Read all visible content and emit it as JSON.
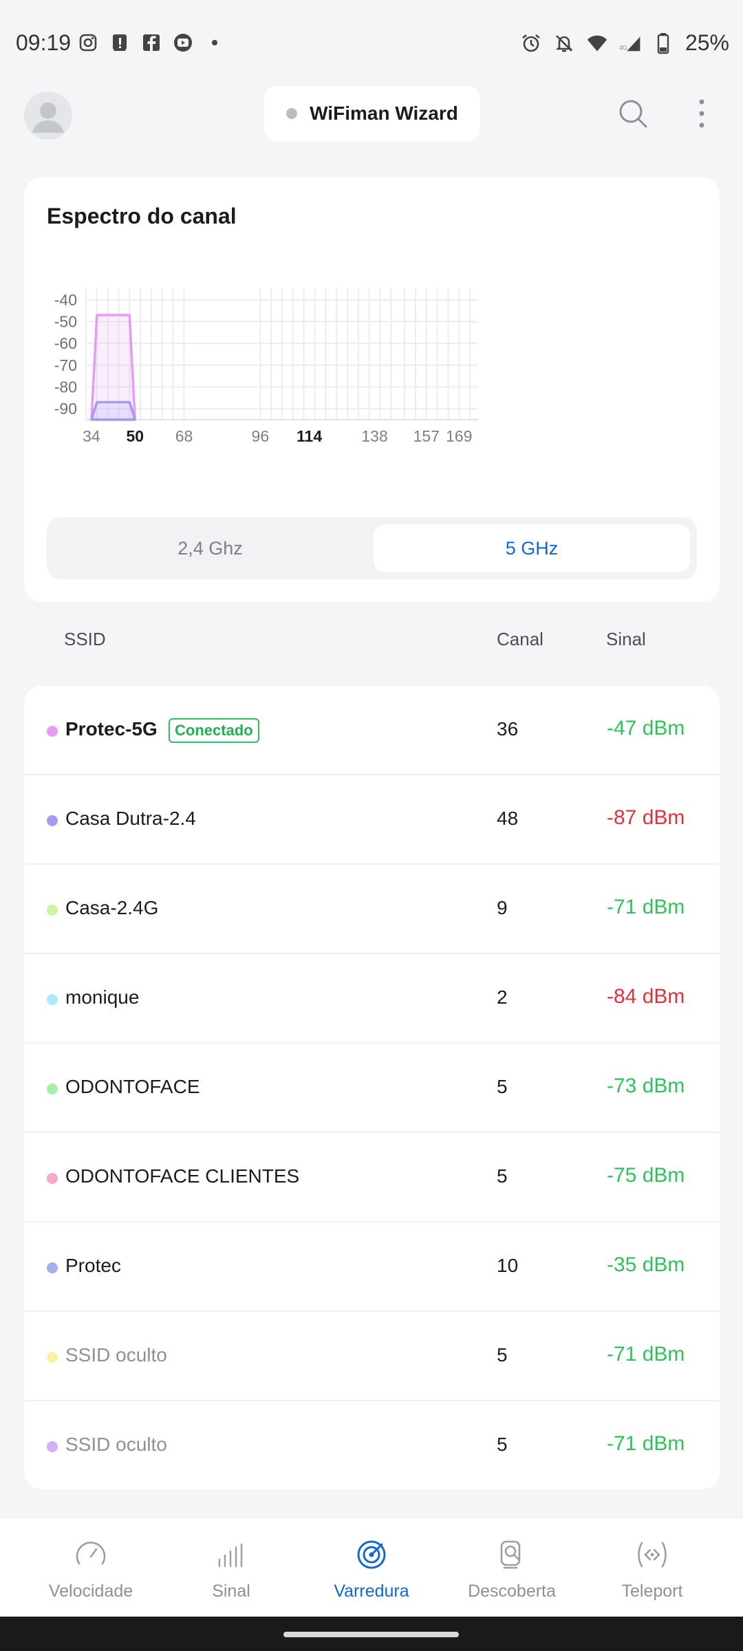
{
  "status_bar": {
    "time": "09:19",
    "battery": "25%",
    "left_icons": [
      "instagram-icon",
      "notification-icon",
      "facebook-icon",
      "youtube-icon",
      "dot-icon"
    ],
    "right_icons": [
      "alarm-icon",
      "bell-off-icon",
      "wifi-icon",
      "signal-4g-icon",
      "battery-icon"
    ]
  },
  "header": {
    "title": "WiFiman Wizard"
  },
  "spectrum": {
    "title": "Espectro do canal",
    "bands": {
      "left": "2,4 Ghz",
      "right": "5 GHz",
      "selected": "5 GHz"
    }
  },
  "chart_data": {
    "type": "area",
    "title": "Espectro do canal",
    "xlabel": "",
    "ylabel": "",
    "y_ticks": [
      "-40",
      "-50",
      "-60",
      "-70",
      "-80",
      "-90"
    ],
    "ylim": [
      -95,
      -35
    ],
    "x_ticks": [
      {
        "label": "34",
        "value": 34,
        "bold": false
      },
      {
        "label": "50",
        "value": 50,
        "bold": true
      },
      {
        "label": "68",
        "value": 68,
        "bold": false
      },
      {
        "label": "96",
        "value": 96,
        "bold": false
      },
      {
        "label": "114",
        "value": 114,
        "bold": true
      },
      {
        "label": "138",
        "value": 138,
        "bold": false
      },
      {
        "label": "157",
        "value": 157,
        "bold": false
      },
      {
        "label": "169",
        "value": 169,
        "bold": false
      }
    ],
    "xlim": [
      32,
      176
    ],
    "grid": true,
    "series": [
      {
        "channel_start": 34,
        "channel_end": 50,
        "value": -47,
        "color": "#e69cf2"
      },
      {
        "channel_start": 34,
        "channel_end": 50,
        "value": -87,
        "color": "#a59cf2"
      }
    ]
  },
  "table": {
    "col_ssid": "SSID",
    "col_channel": "Canal",
    "col_signal": "Sinal"
  },
  "networks": [
    {
      "ssid": "Protec-5G",
      "badge": "Conectado",
      "channel": "36",
      "signal": "-47 dBm",
      "dot": "#e69cf2",
      "signal_color": "#2fc25b",
      "bold": true,
      "hidden": false
    },
    {
      "ssid": "Casa Dutra-2.4",
      "badge": "",
      "channel": "48",
      "signal": "-87 dBm",
      "dot": "#a59cf2",
      "signal_color": "#e0323b",
      "bold": false,
      "hidden": false
    },
    {
      "ssid": "Casa-2.4G",
      "badge": "",
      "channel": "9",
      "signal": "-71 dBm",
      "dot": "#c8f5a0",
      "signal_color": "#2fc25b",
      "bold": false,
      "hidden": false
    },
    {
      "ssid": "monique",
      "badge": "",
      "channel": "2",
      "signal": "-84 dBm",
      "dot": "#a8ecfa",
      "signal_color": "#e0323b",
      "bold": false,
      "hidden": false
    },
    {
      "ssid": "ODONTOFACE",
      "badge": "",
      "channel": "5",
      "signal": "-73 dBm",
      "dot": "#a8f0a8",
      "signal_color": "#2fc25b",
      "bold": false,
      "hidden": false
    },
    {
      "ssid": "ODONTOFACE CLIENTES",
      "badge": "",
      "channel": "5",
      "signal": "-75 dBm",
      "dot": "#f5a8c8",
      "signal_color": "#2fc25b",
      "bold": false,
      "hidden": false
    },
    {
      "ssid": "Protec",
      "badge": "",
      "channel": "10",
      "signal": "-35 dBm",
      "dot": "#a5b0f2",
      "signal_color": "#2fc25b",
      "bold": false,
      "hidden": false
    },
    {
      "ssid": "SSID oculto",
      "badge": "",
      "channel": "5",
      "signal": "-71 dBm",
      "dot": "#fbf3a0",
      "signal_color": "#2fc25b",
      "bold": false,
      "hidden": true
    },
    {
      "ssid": "SSID oculto",
      "badge": "",
      "channel": "5",
      "signal": "-71 dBm",
      "dot": "#d2b0f5",
      "signal_color": "#2fc25b",
      "bold": false,
      "hidden": true
    }
  ],
  "bottom_nav": [
    {
      "label": "Velocidade",
      "icon": "speedometer-icon",
      "active": false
    },
    {
      "label": "Sinal",
      "icon": "signal-bars-icon",
      "active": false
    },
    {
      "label": "Varredura",
      "icon": "radar-icon",
      "active": true
    },
    {
      "label": "Descoberta",
      "icon": "device-search-icon",
      "active": false
    },
    {
      "label": "Teleport",
      "icon": "teleport-icon",
      "active": false
    }
  ],
  "colors": {
    "accent": "#1366d6",
    "good": "#2fc25b",
    "bad": "#e0323b"
  }
}
